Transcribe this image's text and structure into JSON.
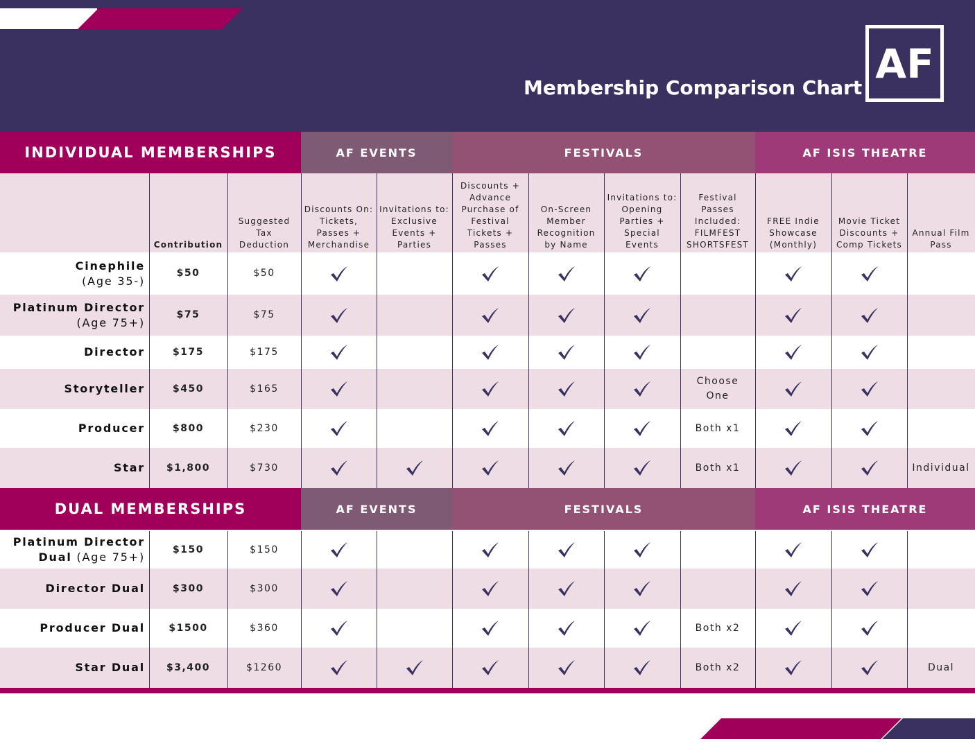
{
  "header": {
    "title": "Membership Comparison Chart",
    "logo": "AF"
  },
  "columns": [
    "Contribution",
    "Suggested Tax Deduction",
    "Discounts On: Tickets, Passes + Merchandise",
    "Invitations to: Exclusive Events + Parties",
    "Discounts + Advance Purchase of Festival Tickets + Passes",
    "On-Screen Member Recognition by Name",
    "Invitations to: Opening Parties + Special Events",
    "Festival Passes Included: FILMFEST SHORTSFEST",
    "FREE Indie Showcase (Monthly)",
    "Movie Ticket Discounts + Comp Tickets",
    "Annual Film Pass"
  ],
  "sections": [
    {
      "title": "INDIVIDUAL MEMBERSHIPS",
      "groups": [
        "AF EVENTS",
        "FESTIVALS",
        "AF ISIS THEATRE"
      ],
      "rows": [
        {
          "name": "Cinephile",
          "note": "(Age 35-)",
          "cells": [
            "$50",
            "$50",
            true,
            null,
            true,
            true,
            true,
            null,
            true,
            true,
            null
          ]
        },
        {
          "name": "Platinum Director",
          "note": "(Age 75+)",
          "cells": [
            "$75",
            "$75",
            true,
            null,
            true,
            true,
            true,
            null,
            true,
            true,
            null
          ]
        },
        {
          "name": "Director",
          "cells": [
            "$175",
            "$175",
            true,
            null,
            true,
            true,
            true,
            null,
            true,
            true,
            null
          ]
        },
        {
          "name": "Storyteller",
          "cells": [
            "$450",
            "$165",
            true,
            null,
            true,
            true,
            true,
            "Choose One",
            true,
            true,
            null
          ]
        },
        {
          "name": "Producer",
          "cells": [
            "$800",
            "$230",
            true,
            null,
            true,
            true,
            true,
            "Both x1",
            true,
            true,
            null
          ]
        },
        {
          "name": "Star",
          "cells": [
            "$1,800",
            "$730",
            true,
            true,
            true,
            true,
            true,
            "Both x1",
            true,
            true,
            "Individual"
          ]
        }
      ]
    },
    {
      "title": "DUAL MEMBERSHIPS",
      "groups": [
        "AF EVENTS",
        "FESTIVALS",
        "AF ISIS THEATRE"
      ],
      "rows": [
        {
          "name": "Platinum Director Dual",
          "note": "(Age 75+)",
          "cells": [
            "$150",
            "$150",
            true,
            null,
            true,
            true,
            true,
            null,
            true,
            true,
            null
          ]
        },
        {
          "name": "Director Dual",
          "cells": [
            "$300",
            "$300",
            true,
            null,
            true,
            true,
            true,
            null,
            true,
            true,
            null
          ]
        },
        {
          "name": "Producer Dual",
          "cells": [
            "$1500",
            "$360",
            true,
            null,
            true,
            true,
            true,
            "Both x2",
            true,
            true,
            null
          ]
        },
        {
          "name": "Star Dual",
          "cells": [
            "$3,400",
            "$1260",
            true,
            true,
            true,
            true,
            true,
            "Both x2",
            true,
            true,
            "Dual"
          ]
        }
      ]
    }
  ]
}
